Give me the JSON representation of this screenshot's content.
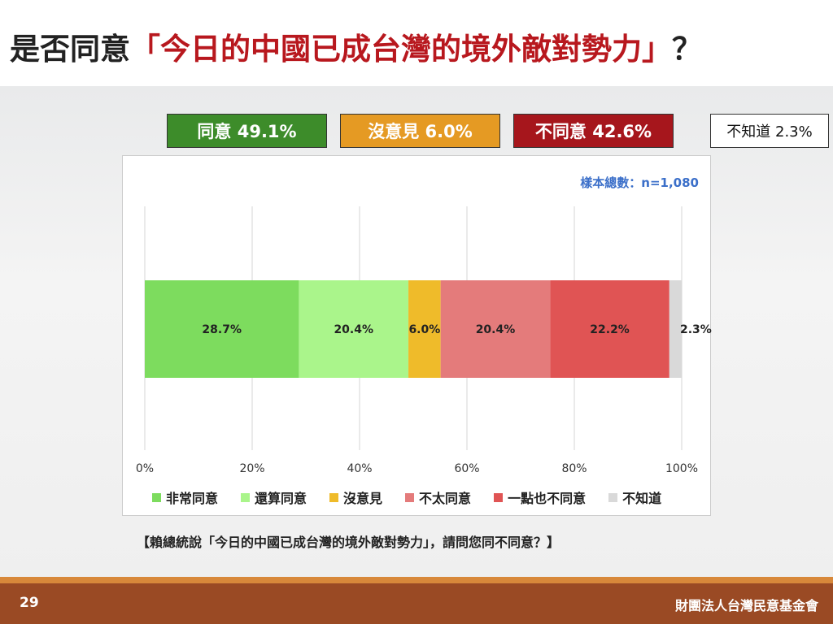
{
  "title": {
    "prefix": "是否同意",
    "highlight": "「今日的中國已成台灣的境外敵對勢力」",
    "suffix": "？"
  },
  "summary": [
    {
      "label": "同意 49.1%",
      "color": "#3d8c2a"
    },
    {
      "label": "沒意見 6.0%",
      "color": "#e59a23"
    },
    {
      "label": "不同意 42.6%",
      "color": "#a6161c"
    },
    {
      "label": "不知道 2.3%",
      "color": "#ffffff"
    }
  ],
  "sample_size": "樣本總數：n=1,080",
  "question": "【賴總統說「今日的中國已成台灣的境外敵對勢力」，請問您同不同意？】",
  "page_number": "29",
  "organization": "財團法人台灣民意基金會",
  "chart_data": {
    "type": "bar",
    "orientation": "horizontal-stacked",
    "title": "",
    "xlabel": "",
    "ylabel": "",
    "xlim": [
      0,
      100
    ],
    "x_ticks": [
      "0%",
      "20%",
      "40%",
      "60%",
      "80%",
      "100%"
    ],
    "grid": true,
    "legend_position": "bottom",
    "series": [
      {
        "name": "非常同意",
        "value": 28.7,
        "label": "28.7%",
        "color": "#7ddc5e"
      },
      {
        "name": "還算同意",
        "value": 20.4,
        "label": "20.4%",
        "color": "#aaf58b"
      },
      {
        "name": "沒意見",
        "value": 6.0,
        "label": "6.0%",
        "color": "#efbb2a"
      },
      {
        "name": "不太同意",
        "value": 20.4,
        "label": "20.4%",
        "color": "#e47b7b"
      },
      {
        "name": "一點也不同意",
        "value": 22.2,
        "label": "22.2%",
        "color": "#e05454"
      },
      {
        "name": "不知道",
        "value": 2.3,
        "label": "2.3%",
        "color": "#d9d9d9"
      }
    ]
  }
}
